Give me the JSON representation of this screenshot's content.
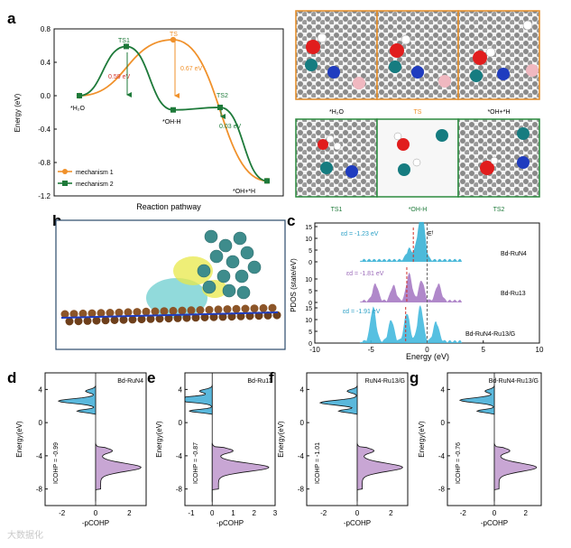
{
  "figure": {
    "panels": {
      "a": "a",
      "b": "b",
      "c": "c",
      "d": "d",
      "e": "e",
      "f": "f",
      "g": "g"
    },
    "watermark": "大数据化"
  },
  "chart_data": [
    {
      "id": "a",
      "type": "line",
      "title": "",
      "xlabel": "Reaction pathway",
      "ylabel": "Energy (eV)",
      "ylim": [
        -1.2,
        0.8
      ],
      "yticks": [
        "0.8",
        "0.4",
        "0.0",
        "-0.4",
        "-0.8",
        "-1.2"
      ],
      "yvals": [
        0.8,
        0.4,
        0.0,
        -0.4,
        -0.8,
        -1.2
      ],
      "states": [
        "*H2O",
        "TS",
        "*OH+*H"
      ],
      "series": [
        {
          "name": "mechanism 1",
          "color": "#f0912b",
          "points": [
            [
              0,
              0.0
            ],
            [
              1,
              0.67
            ],
            [
              2,
              -1.02
            ]
          ]
        },
        {
          "name": "mechanism 2",
          "color": "#1e7a3a",
          "points": [
            [
              0,
              0.0
            ],
            [
              0.5,
              0.59
            ],
            [
              1.0,
              -0.17
            ],
            [
              1.5,
              -0.14
            ],
            [
              2.0,
              -1.02
            ]
          ]
        }
      ],
      "labels": {
        "h2o": "*H₂O",
        "ts1": "TS1",
        "ts": "TS",
        "ts2": "TS2",
        "ohh_mid": "*OH-H",
        "ohh_end": "*OH+*H",
        "barrier_ts1": "0.59 eV",
        "barrier_ts": "0.67 eV",
        "barrier_ts2": "0.03 eV"
      },
      "legend": [
        "mechanism 1",
        "mechanism 2"
      ]
    },
    {
      "id": "c",
      "type": "area",
      "xlabel": "Energy (eV)",
      "ylabel": "PDOS (state/eV)",
      "xlim": [
        -10,
        10
      ],
      "xticks": [
        "-10",
        "-5",
        "0",
        "5",
        "10"
      ],
      "yticks": [
        "0",
        "5",
        "10",
        "15"
      ],
      "ef_label": "Eᶠ",
      "series": [
        {
          "name": "Bd-RuN4",
          "eps": "εd = -1.23 eV",
          "color": "#3ab3d6"
        },
        {
          "name": "Bd-Ru13",
          "eps": "εd = -1.81 eV",
          "color": "#9b6ab9"
        },
        {
          "name": "Bd-RuN4-Ru13/G",
          "eps": "εd = -1.91 eV",
          "color": "#3ab3d6"
        }
      ]
    },
    {
      "id": "d",
      "type": "area",
      "title": "Bd-RuN4",
      "xlabel": "-pCOHP",
      "ylabel": "Energy(eV)",
      "xticks": [
        "-2",
        "0",
        "2"
      ],
      "yticks": [
        "4",
        "0",
        "-4",
        "-8"
      ],
      "icohp": "ICOHP = -0.99"
    },
    {
      "id": "e",
      "type": "area",
      "title": "Bd-Ru13",
      "xlabel": "-pCOHP",
      "ylabel": "Energy(eV)",
      "xticks": [
        "-1",
        "0",
        "1",
        "2",
        "3"
      ],
      "yticks": [
        "4",
        "0",
        "-4",
        "-8"
      ],
      "icohp": "ICOHP = -0.87"
    },
    {
      "id": "f",
      "type": "area",
      "title": "RuN4-Ru13/G",
      "xlabel": "-pCOHP",
      "ylabel": "Energy(eV)",
      "xticks": [
        "-2",
        "0",
        "2"
      ],
      "yticks": [
        "4",
        "0",
        "-4",
        "-8"
      ],
      "icohp": "ICOHP = -1.01"
    },
    {
      "id": "g",
      "type": "area",
      "title": "Bd-RuN4-Ru13/G",
      "xlabel": "-pCOHP",
      "ylabel": "Energy(eV)",
      "xticks": [
        "-2",
        "0",
        "2"
      ],
      "yticks": [
        "4",
        "0",
        "-4",
        "-8"
      ],
      "icohp": "ICOHP = -0.76"
    }
  ],
  "structures": {
    "top": [
      "*H₂O",
      "TS",
      "*OH+*H"
    ],
    "bottom": [
      "TS1",
      "*OH-H",
      "TS2"
    ]
  }
}
